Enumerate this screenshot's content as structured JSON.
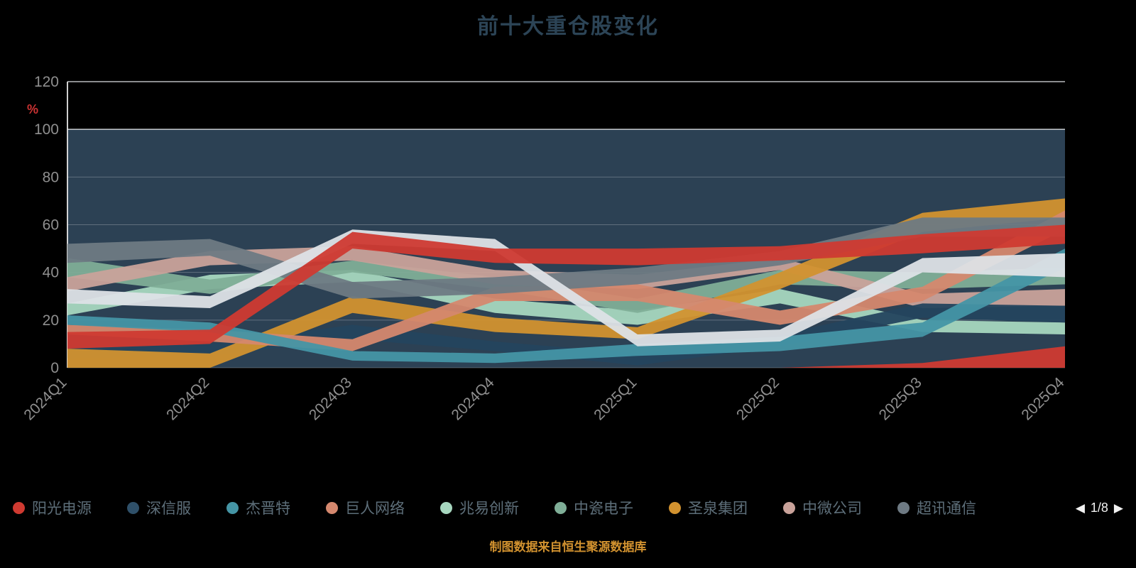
{
  "title": "前十大重仓股变化",
  "footer": {
    "caption": "制图数据来自恒生聚源数据库"
  },
  "legend": {
    "items": [
      {
        "label": "阳光电源",
        "color": "#cf3a31"
      },
      {
        "label": "深信服",
        "color": "#2f5069"
      },
      {
        "label": "杰晋特",
        "color": "#4595a5"
      },
      {
        "label": "巨人网络",
        "color": "#d5886e"
      },
      {
        "label": "兆易创新",
        "color": "#a7d7bf"
      },
      {
        "label": "中瓷电子",
        "color": "#7fae97"
      },
      {
        "label": "圣泉集团",
        "color": "#d2922f"
      },
      {
        "label": "中微公司",
        "color": "#c9a29a"
      },
      {
        "label": "超讯通信",
        "color": "#6e7a83"
      }
    ],
    "pagination": {
      "prev": "◀",
      "current": "1/8",
      "next": "▶"
    }
  },
  "chart_data": {
    "type": "area",
    "title": "前十大重仓股变化",
    "categories": [
      "2024Q1",
      "2024Q2",
      "2024Q3",
      "2024Q4",
      "2025Q1",
      "2025Q2",
      "2025Q3",
      "2025Q4"
    ],
    "xlabel": "",
    "ylabel": "%",
    "ylim": [
      0,
      120
    ],
    "y_ticks": [
      0,
      20,
      40,
      60,
      80,
      100,
      120
    ],
    "grid": true,
    "legend_position": "bottom",
    "plot_background": {
      "range": [
        0,
        100
      ],
      "color": "#2c4154"
    },
    "axis_label_color": "#8f8f8f",
    "unit_label_color": "#cc3333",
    "series": [
      {
        "id": "band-zhaoyi",
        "name": "兆易创新",
        "color": "#a7d7bf",
        "band": [
          [
            22,
            27
          ],
          [
            33,
            39
          ],
          [
            36,
            41
          ],
          [
            23,
            29
          ],
          [
            18,
            24
          ],
          [
            27,
            33
          ],
          [
            15,
            20
          ],
          [
            14,
            19
          ]
        ]
      },
      {
        "id": "band-zhongci",
        "name": "中瓷电子",
        "color": "#7fae97",
        "band": [
          [
            38,
            46
          ],
          [
            31,
            37
          ],
          [
            40,
            45
          ],
          [
            33,
            38
          ],
          [
            23,
            29
          ],
          [
            35,
            41
          ],
          [
            33,
            40
          ],
          [
            35,
            42
          ]
        ]
      },
      {
        "id": "band-zhongwei",
        "name": "中微公司",
        "color": "#c9a29a",
        "band": [
          [
            32,
            38
          ],
          [
            43,
            49
          ],
          [
            45,
            51
          ],
          [
            35,
            41
          ],
          [
            33,
            39
          ],
          [
            41,
            46
          ],
          [
            25,
            31
          ],
          [
            26,
            33
          ]
        ]
      },
      {
        "id": "band-sangfor",
        "name": "深信服",
        "color": "#24455e",
        "band": [
          [
            4,
            8
          ],
          [
            5,
            10
          ],
          [
            12,
            18
          ],
          [
            7,
            11
          ],
          [
            1,
            6
          ],
          [
            9,
            14
          ],
          [
            21,
            27
          ],
          [
            19,
            26
          ]
        ]
      },
      {
        "id": "band-shengquan",
        "name": "圣泉集团",
        "color": "#d2922f",
        "band": [
          [
            0,
            8
          ],
          [
            0,
            6
          ],
          [
            23,
            30
          ],
          [
            15,
            21
          ],
          [
            12,
            17
          ],
          [
            33,
            40
          ],
          [
            57,
            65
          ],
          [
            63,
            71
          ]
        ]
      },
      {
        "id": "band-juren",
        "name": "巨人网络",
        "color": "#d5886e",
        "band": [
          [
            14,
            18
          ],
          [
            11,
            16
          ],
          [
            7,
            12
          ],
          [
            28,
            34
          ],
          [
            28,
            35
          ],
          [
            18,
            24
          ],
          [
            28,
            34
          ],
          [
            58,
            66
          ]
        ]
      },
      {
        "id": "band-jiejin",
        "name": "杰晋特",
        "color": "#4595a5",
        "band": [
          [
            18,
            22
          ],
          [
            15,
            19
          ],
          [
            3,
            7
          ],
          [
            2,
            6
          ],
          [
            5,
            10
          ],
          [
            7,
            13
          ],
          [
            13,
            19
          ],
          [
            42,
            50
          ]
        ]
      },
      {
        "id": "band-chaoxun",
        "name": "超讯通信",
        "color": "#6e7a83",
        "band": [
          [
            44,
            52
          ],
          [
            47,
            54
          ],
          [
            29,
            36
          ],
          [
            31,
            38
          ],
          [
            35,
            42
          ],
          [
            43,
            49
          ],
          [
            55,
            63
          ],
          [
            55,
            63
          ]
        ]
      },
      {
        "id": "band-white",
        "name": "",
        "color": "#dde2e6",
        "band": [
          [
            27,
            33
          ],
          [
            25,
            30
          ],
          [
            52,
            58
          ],
          [
            49,
            54
          ],
          [
            9,
            14
          ],
          [
            11,
            16
          ],
          [
            40,
            46
          ],
          [
            38,
            48
          ]
        ]
      },
      {
        "id": "band-yangguang",
        "name": "阳光电源",
        "color": "#cf3a31",
        "band": [
          [
            8,
            15
          ],
          [
            10,
            16
          ],
          [
            50,
            57
          ],
          [
            44,
            50
          ],
          [
            43,
            50
          ],
          [
            45,
            51
          ],
          [
            48,
            56
          ],
          [
            52,
            60
          ]
        ]
      },
      {
        "id": "band-red-2",
        "name": "",
        "color": "#cf3a31",
        "band": [
          [
            0,
            0
          ],
          [
            0,
            0
          ],
          [
            0,
            0
          ],
          [
            0,
            0
          ],
          [
            0,
            0
          ],
          [
            0,
            0
          ],
          [
            0,
            2
          ],
          [
            0,
            9
          ]
        ]
      }
    ]
  }
}
